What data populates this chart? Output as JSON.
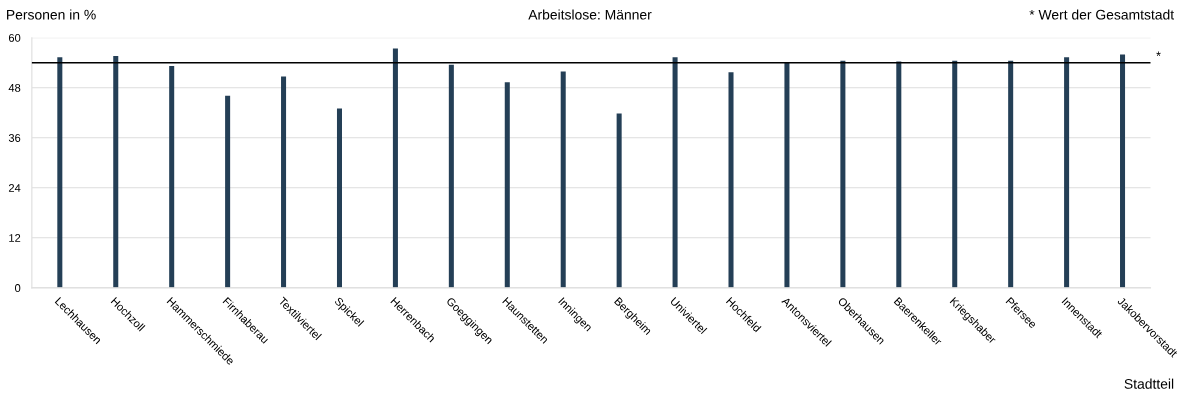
{
  "chart_data": {
    "type": "bar",
    "title": "Arbeitslose: Männer",
    "ylabel": "Personen in %",
    "xlabel": "Stadtteil",
    "annotations": [
      "* Wert der Gesamtstadt"
    ],
    "categories": [
      "Lechhausen",
      "Hochzoll",
      "Hammerschmiede",
      "Firnhaberau",
      "Textilviertel",
      "Spickel",
      "Herrenbach",
      "Goeggingen",
      "Haunstetten",
      "Inningen",
      "Bergheim",
      "Univiertel",
      "Hochfeld",
      "Antonsviertel",
      "Oberhausen",
      "Baerenkeller",
      "Kriegshaber",
      "Pfersee",
      "Innenstadt",
      "Jakobervorstadt"
    ],
    "values": [
      55.3,
      55.6,
      53.2,
      46.1,
      50.7,
      43.0,
      57.4,
      53.5,
      49.3,
      51.9,
      41.8,
      55.3,
      51.7,
      54.0,
      54.5,
      54.3,
      54.5,
      54.5,
      55.3,
      56.0
    ],
    "color": "#243f56",
    "ylim": [
      0,
      60
    ],
    "yticks": [
      0,
      12,
      24,
      36,
      48,
      60
    ],
    "grid": "y",
    "ref_lines": [
      {
        "axis": "y",
        "value": 54.0,
        "label": "*",
        "color": "#000000"
      }
    ]
  }
}
